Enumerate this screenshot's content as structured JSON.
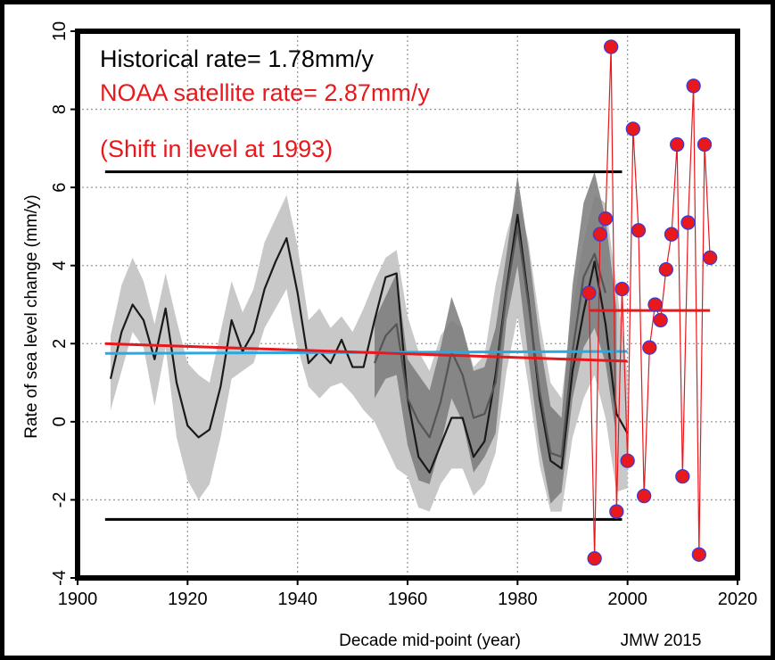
{
  "chart_data": {
    "type": "line",
    "xlabel": "Decade mid-point (year)",
    "ylabel": "Rate of sea level change (mm/y)",
    "xlim": [
      1900,
      2020
    ],
    "ylim": [
      -4,
      10
    ],
    "x_ticks": [
      1900,
      1920,
      1940,
      1960,
      1980,
      2000,
      2020
    ],
    "y_ticks": [
      -4,
      -2,
      0,
      2,
      4,
      6,
      8,
      10
    ],
    "grid": true,
    "credit": "JMW 2015",
    "annotations": {
      "historical_rate": "Historical rate= 1.78mm/y",
      "noaa_rate": "NOAA satellite rate= 2.87mm/y",
      "shift_note": "(Shift in level at 1993)"
    },
    "colors": {
      "historical_text": "#000000",
      "noaa_text": "#e8181c",
      "blue_line": "#29a9e0",
      "red_line": "#e8181c",
      "marker": "#e8181c",
      "marker_edge": "#3b3bd8",
      "band_light": "#c8c8c8",
      "band_dark": "#7a7a7a",
      "series_dark": "#1a1a1a",
      "series_mid": "#555555"
    },
    "reference_lines": [
      {
        "y": 6.4,
        "x": [
          1905,
          1999
        ],
        "color": "#000000"
      },
      {
        "y": -2.5,
        "x": [
          1905,
          1999
        ],
        "color": "#000000"
      }
    ],
    "trend_lines": [
      {
        "x": [
          1905,
          2000
        ],
        "y": [
          1.75,
          1.8
        ],
        "color": "#29a9e0"
      },
      {
        "x": [
          1905,
          2000
        ],
        "y": [
          2.0,
          1.55
        ],
        "color": "#e8181c"
      },
      {
        "x": [
          1993,
          2015
        ],
        "y": [
          2.85,
          2.85
        ],
        "color": "#e8181c"
      }
    ],
    "series": [
      {
        "name": "",
        "style": "band",
        "x": [
          1906,
          1908,
          1910,
          1912,
          1914,
          1916,
          1918,
          1920,
          1922,
          1924,
          1926,
          1928,
          1930,
          1932,
          1934,
          1936,
          1938,
          1940,
          1942,
          1944,
          1946,
          1948,
          1950,
          1952,
          1954,
          1956,
          1958,
          1960,
          1962,
          1964,
          1966,
          1968,
          1970,
          1972,
          1974,
          1976,
          1978,
          1980,
          1982,
          1984,
          1986,
          1988,
          1990,
          1992,
          1994,
          1996,
          1998,
          2000
        ],
        "upper": [
          2.2,
          3.5,
          4.2,
          3.6,
          2.5,
          3.8,
          2.6,
          1.5,
          1.2,
          1.0,
          2.3,
          3.6,
          2.8,
          3.4,
          4.6,
          5.2,
          5.8,
          4.5,
          2.6,
          2.9,
          2.4,
          2.7,
          2.3,
          2.9,
          3.6,
          4.2,
          4.4,
          2.7,
          1.8,
          1.3,
          2.2,
          2.6,
          2.4,
          1.4,
          1.7,
          3.5,
          4.8,
          5.8,
          4.6,
          2.6,
          1.0,
          0.6,
          2.9,
          4.6,
          5.8,
          5.6,
          3.5,
          1.2
        ],
        "lower": [
          0.3,
          1.3,
          2.3,
          1.9,
          0.4,
          1.9,
          -0.4,
          -1.5,
          -2.0,
          -1.6,
          -0.4,
          1.1,
          1.3,
          1.5,
          2.4,
          2.9,
          3.4,
          1.9,
          0.9,
          0.6,
          0.9,
          1.0,
          0.7,
          0.3,
          0.0,
          -0.6,
          -1.2,
          -1.4,
          -2.2,
          -2.3,
          -1.6,
          -1.2,
          -1.2,
          -1.9,
          -1.6,
          -0.8,
          1.3,
          2.7,
          0.9,
          -1.1,
          -2.3,
          -2.3,
          -0.4,
          0.6,
          1.2,
          0.1,
          -1.8,
          -1.7
        ]
      },
      {
        "name": "",
        "style": "band-dark",
        "x": [
          1954,
          1956,
          1958,
          1960,
          1962,
          1964,
          1966,
          1968,
          1970,
          1972,
          1974,
          1976,
          1978,
          1980,
          1982,
          1984,
          1986,
          1988,
          1990,
          1992,
          1994,
          1996,
          1998
        ],
        "upper": [
          2.6,
          3.2,
          3.8,
          1.6,
          1.2,
          0.8,
          1.9,
          3.2,
          2.4,
          1.3,
          1.4,
          2.4,
          4.3,
          6.3,
          4.4,
          2.1,
          0.4,
          0.1,
          3.5,
          5.6,
          6.4,
          5.2,
          2.9
        ],
        "lower": [
          0.6,
          1.1,
          1.2,
          -0.6,
          -1.5,
          -1.6,
          -0.6,
          0.6,
          0.0,
          -1.3,
          -0.9,
          -0.3,
          2.6,
          4.0,
          1.6,
          -0.6,
          -2.1,
          -1.8,
          0.6,
          1.9,
          2.4,
          1.5,
          -0.4
        ]
      },
      {
        "name": "",
        "style": "line-dark",
        "x": [
          1906,
          1908,
          1910,
          1912,
          1914,
          1916,
          1918,
          1920,
          1922,
          1924,
          1926,
          1928,
          1930,
          1932,
          1934,
          1936,
          1938,
          1940,
          1942,
          1944,
          1946,
          1948,
          1950,
          1952,
          1954,
          1956,
          1958,
          1960,
          1962,
          1964,
          1966,
          1968,
          1970,
          1972,
          1974,
          1976,
          1978,
          1980,
          1982,
          1984,
          1986,
          1988,
          1990,
          1992,
          1994,
          1996,
          1998,
          2000
        ],
        "values": [
          1.1,
          2.3,
          3.0,
          2.6,
          1.6,
          2.9,
          1.0,
          -0.1,
          -0.4,
          -0.2,
          0.9,
          2.6,
          1.8,
          2.3,
          3.4,
          4.1,
          4.7,
          3.3,
          1.5,
          1.8,
          1.5,
          2.1,
          1.4,
          1.4,
          2.6,
          3.7,
          3.8,
          0.6,
          -0.9,
          -1.3,
          -0.6,
          0.1,
          0.1,
          -0.9,
          -0.5,
          1.2,
          3.4,
          5.3,
          3.1,
          0.6,
          -1.0,
          -1.2,
          1.3,
          2.8,
          4.1,
          2.5,
          0.2,
          -0.3
        ]
      },
      {
        "name": "",
        "style": "line-mid",
        "x": [
          1954,
          1956,
          1958,
          1960,
          1962,
          1964,
          1966,
          1968,
          1970,
          1972,
          1974,
          1976,
          1978,
          1980,
          1982,
          1984,
          1986,
          1988,
          1990,
          1992,
          1994,
          1996
        ],
        "values": [
          1.5,
          2.2,
          2.5,
          0.6,
          0.0,
          -0.4,
          0.5,
          1.8,
          1.2,
          0.1,
          0.2,
          1.0,
          3.3,
          5.0,
          3.0,
          0.8,
          -0.8,
          -0.9,
          1.8,
          3.7,
          4.3,
          3.3
        ]
      },
      {
        "name": "",
        "style": "markers",
        "x": [
          1993,
          1994,
          1995,
          1996,
          1997,
          1998,
          1999,
          2000,
          2001,
          2002,
          2003,
          2004,
          2005,
          2006,
          2007,
          2008,
          2009,
          2010,
          2011,
          2012,
          2013,
          2014,
          2015
        ],
        "values": [
          3.3,
          -3.5,
          4.8,
          5.2,
          9.6,
          -2.3,
          3.4,
          -1.0,
          7.5,
          4.9,
          -1.9,
          1.9,
          3.0,
          2.6,
          3.9,
          4.8,
          7.1,
          -1.4,
          5.1,
          8.6,
          -3.4,
          7.1,
          4.2
        ]
      }
    ]
  }
}
